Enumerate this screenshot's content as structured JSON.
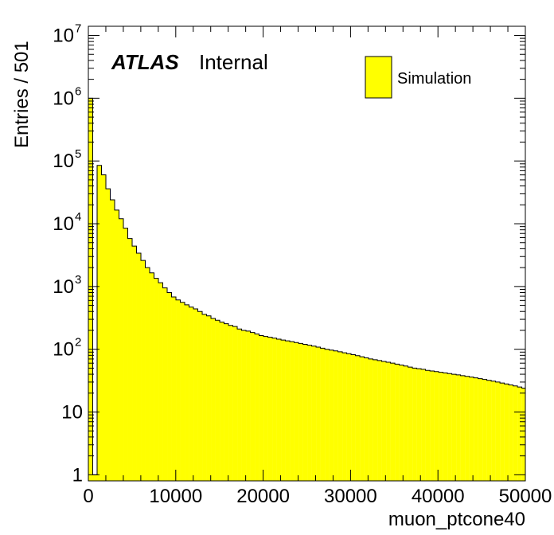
{
  "chart_data": {
    "type": "bar",
    "histogram": true,
    "ylabel": "Entries / 501",
    "xlabel": "muon_ptcone40",
    "xlim": [
      0,
      50000
    ],
    "ylim": [
      0.8,
      14000000
    ],
    "log_y": true,
    "bin_width": 501,
    "x_ticks": [
      0,
      10000,
      20000,
      30000,
      40000,
      50000
    ],
    "x_tick_labels": [
      "0",
      "10000",
      "20000",
      "30000",
      "40000",
      "50000"
    ],
    "y_ticks": [
      1,
      10,
      100,
      1000,
      10000,
      100000,
      1000000,
      10000000
    ],
    "y_tick_labels": [
      {
        "base": "1",
        "exp": ""
      },
      {
        "base": "10",
        "exp": ""
      },
      {
        "base": "10",
        "exp": "2"
      },
      {
        "base": "10",
        "exp": "3"
      },
      {
        "base": "10",
        "exp": "4"
      },
      {
        "base": "10",
        "exp": "5"
      },
      {
        "base": "10",
        "exp": "6"
      },
      {
        "base": "10",
        "exp": "7"
      }
    ],
    "fill_color": "#ffff00",
    "line_color": "#000000",
    "legend_position": "top-right",
    "series": [
      {
        "name": "Simulation",
        "values": [
          1000000,
          1,
          85000,
          60000,
          36000,
          24000,
          16500,
          12000,
          8500,
          5800,
          4400,
          3400,
          2600,
          2000,
          1650,
          1350,
          1150,
          950,
          800,
          680,
          610,
          560,
          510,
          470,
          440,
          400,
          360,
          340,
          310,
          290,
          270,
          255,
          240,
          230,
          210,
          200,
          195,
          185,
          175,
          165,
          160,
          155,
          150,
          145,
          140,
          136,
          132,
          128,
          124,
          120,
          116,
          112,
          108,
          104,
          100,
          97,
          94,
          91,
          88,
          85,
          82,
          79,
          76,
          73,
          70,
          68,
          66,
          64,
          62,
          60,
          58,
          56,
          54,
          52,
          50,
          49,
          48,
          46,
          45,
          44,
          43,
          42,
          41,
          40,
          39,
          38,
          37,
          36,
          35,
          34,
          33,
          32,
          31,
          30,
          29,
          28,
          27,
          26,
          25,
          24
        ]
      }
    ]
  },
  "branding": {
    "experiment": "ATLAS",
    "status": "Internal"
  }
}
